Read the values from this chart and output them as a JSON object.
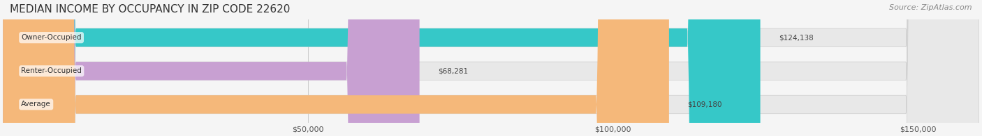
{
  "title": "MEDIAN INCOME BY OCCUPANCY IN ZIP CODE 22620",
  "source": "Source: ZipAtlas.com",
  "categories": [
    "Owner-Occupied",
    "Renter-Occupied",
    "Average"
  ],
  "values": [
    124138,
    68281,
    109180
  ],
  "bar_colors": [
    "#36c8c8",
    "#c8a0d2",
    "#f5b87a"
  ],
  "bar_edge_colors": [
    "#2ab0b0",
    "#b888c4",
    "#e8a060"
  ],
  "label_colors": [
    "#ffffff",
    "#555555",
    "#555555"
  ],
  "value_labels": [
    "$124,138",
    "$68,281",
    "$109,180"
  ],
  "xlim": [
    0,
    160000
  ],
  "xticks": [
    0,
    50000,
    100000,
    150000
  ],
  "xticklabels": [
    "",
    "$50,000",
    "$100,000",
    "$150,000"
  ],
  "bg_color": "#f5f5f5",
  "bar_bg_color": "#e8e8e8",
  "title_fontsize": 11,
  "source_fontsize": 8,
  "bar_height": 0.55,
  "figsize": [
    14.06,
    1.96
  ],
  "dpi": 100
}
